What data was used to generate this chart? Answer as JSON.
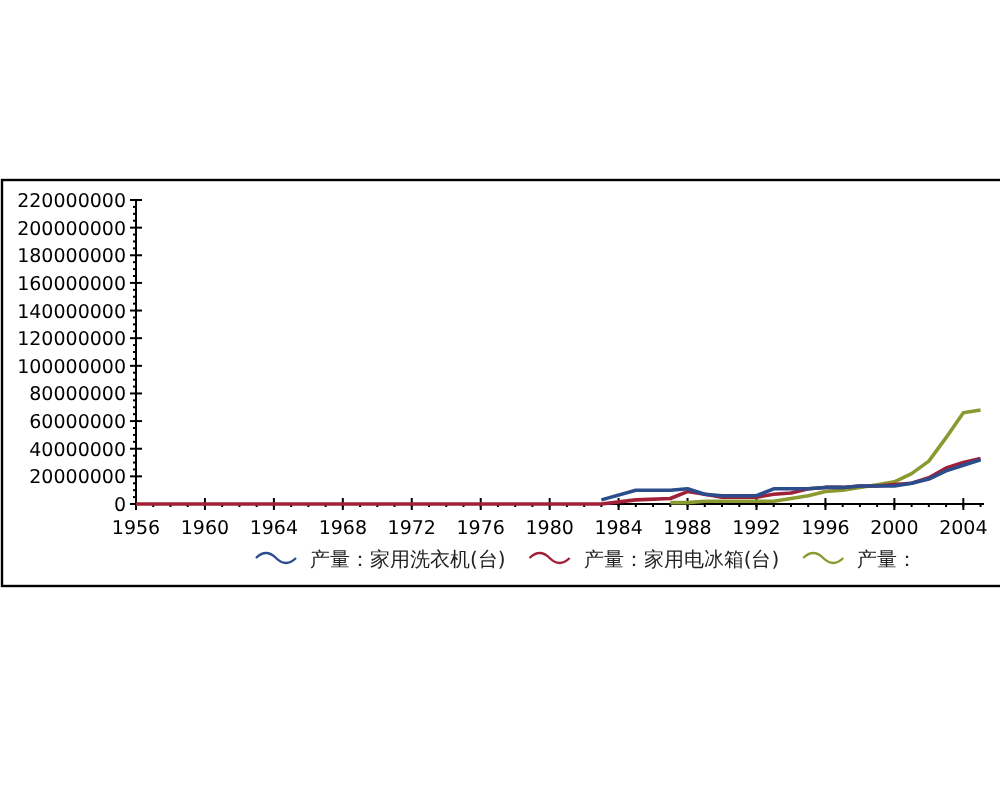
{
  "chart_data": {
    "type": "line",
    "x": [
      1956,
      1978,
      1980,
      1983,
      1985,
      1987,
      1988,
      1989,
      1990,
      1992,
      1993,
      1994,
      1995,
      1996,
      1997,
      1998,
      1999,
      2000,
      2001,
      2002,
      2003,
      2004,
      2005
    ],
    "series": [
      {
        "name": "产量：家用洗衣机(台)",
        "color": "#2b4d8c",
        "x": [
          1983,
          1985,
          1987,
          1988,
          1989,
          1990,
          1992,
          1993,
          1994,
          1995,
          1996,
          1997,
          1998,
          1999,
          2000,
          2001,
          2002,
          2003,
          2004,
          2005
        ],
        "values": [
          3000000,
          10000000,
          10000000,
          11000000,
          7000000,
          6000000,
          6000000,
          11000000,
          11000000,
          11000000,
          12000000,
          12000000,
          13000000,
          13000000,
          13000000,
          15000000,
          18000000,
          24000000,
          28000000,
          32000000
        ]
      },
      {
        "name": "产量：家用电冰箱(台)",
        "color": "#a0203a",
        "values": [
          0,
          0,
          0,
          0,
          3000000,
          4000000,
          9000000,
          7000000,
          5000000,
          5000000,
          7000000,
          8000000,
          11000000,
          12000000,
          12000000,
          13000000,
          13000000,
          14000000,
          15000000,
          19000000,
          26000000,
          30000000,
          33000000
        ]
      },
      {
        "name": "产量：",
        "color": "#8a9a30",
        "x": [
          1987,
          1988,
          1989,
          1990,
          1992,
          1993,
          1994,
          1995,
          1996,
          1997,
          1998,
          1999,
          2000,
          2001,
          2002,
          2003,
          2004,
          2005
        ],
        "values": [
          1000000,
          1000000,
          2000000,
          2000000,
          2000000,
          2000000,
          4000000,
          6000000,
          9000000,
          10000000,
          12000000,
          14000000,
          16000000,
          22000000,
          31000000,
          48000000,
          66000000,
          68000000
        ]
      }
    ],
    "xlim": [
      1956,
      2005.2
    ],
    "ylim": [
      0,
      220000000
    ],
    "xticks": [
      1956,
      1960,
      1964,
      1968,
      1972,
      1976,
      1980,
      1984,
      1988,
      1992,
      1996,
      2000,
      2004
    ],
    "yticks": [
      0,
      20000000,
      40000000,
      60000000,
      80000000,
      100000000,
      120000000,
      140000000,
      160000000,
      180000000,
      200000000,
      220000000
    ],
    "grid": false,
    "legend": "bottom",
    "marker": "none",
    "line_style": "solid"
  }
}
